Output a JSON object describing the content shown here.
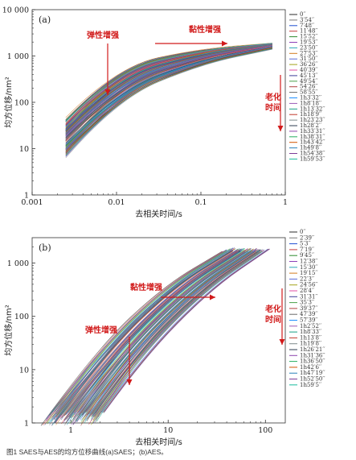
{
  "caption": "图1 SAES与AES的均方位移曲线(a)SAES；(b)AES。",
  "chart_data": [
    {
      "type": "line",
      "panel_label": "(a)",
      "xlabel": "去相关时间/s",
      "ylabel": "均方位移/nm²",
      "xscale": "log",
      "yscale": "log",
      "xlim": [
        0.001,
        1
      ],
      "ylim": [
        1,
        10000
      ],
      "xticks": [
        "0.001",
        "0.01",
        "0.1",
        "1"
      ],
      "yticks": [
        "1",
        "10",
        "100",
        "1 000",
        "10 000"
      ],
      "x_start": 0.0025,
      "annotations": [
        "弹性增强",
        "黏性增强",
        "老化\n时间"
      ],
      "legend": [
        "0′′",
        "3′54′′",
        "7′48′′",
        "11′48′′",
        "15′52′′",
        "19′53′′",
        "23′50′′",
        "27′53′′",
        "31′50′′",
        "36′26′′",
        "40′39′′",
        "45′13′′",
        "49′54′′",
        "54′26′′",
        "58′55′′",
        "1h3′32′′",
        "1h8′18′′",
        "1h13′32′′",
        "1h18′9′′",
        "1h23′23′′",
        "1h28′2′′",
        "1h33′31′′",
        "1h38′31′′",
        "1h43′42′′",
        "1h49′8′′",
        "1h54′38′′",
        "1h59′53′′"
      ],
      "series_colors": [
        "#2b2b2b",
        "#7a7a7a",
        "#1f4fd1",
        "#c43c3c",
        "#2e8b2e",
        "#8c3fb8",
        "#2aa7b8",
        "#d27b1e",
        "#5a6bd8",
        "#a3a31a",
        "#e04fa3",
        "#3d3d9a",
        "#4aa04a",
        "#b04040",
        "#6a6a6a",
        "#1e90ff",
        "#9b59b6",
        "#16a085",
        "#c0392b",
        "#7f8c8d",
        "#2c3e50",
        "#8e44ad",
        "#27ae60",
        "#d35400",
        "#2980b9",
        "#7d3c98",
        "#1abc9c"
      ],
      "series": [
        {
          "name": "0′′",
          "x": [
            0.0025,
            0.01,
            0.1,
            0.7
          ],
          "y": [
            40,
            600,
            1400,
            1800
          ]
        },
        {
          "name": "1h59′53′′",
          "x": [
            0.0025,
            0.01,
            0.1,
            0.7
          ],
          "y": [
            8,
            120,
            700,
            1500
          ]
        }
      ]
    },
    {
      "type": "line",
      "panel_label": "(b)",
      "xlabel": "去相关时间/s",
      "ylabel": "均方位移/nm²",
      "xscale": "log",
      "yscale": "log",
      "xlim": [
        0.4,
        160
      ],
      "ylim": [
        1,
        3000
      ],
      "xticks": [
        "1",
        "10",
        "100"
      ],
      "yticks": [
        "1",
        "10",
        "100",
        "1 000"
      ],
      "annotations": [
        "黏性增强",
        "弹性增强",
        "老化\n时间"
      ],
      "legend": [
        "0′′",
        "2′39′′",
        "5′3′′",
        "7′19′′",
        "9′45′′",
        "12′38′′",
        "15′30′′",
        "19′15′′",
        "22′3′′",
        "24′56′′",
        "28′4′′",
        "31′31′′",
        "35′3′′",
        "39′37′′",
        "47′39′′",
        "57′39′′",
        "1h2′52′′",
        "1h8′33′′",
        "1h13′8′′",
        "1h19′8′′",
        "1h26′21′′",
        "1h31′36′′",
        "1h36′50′′",
        "1h42′6′′",
        "1h47′19′′",
        "1h52′50′′",
        "1h59′5′′"
      ],
      "series_colors": [
        "#2b2b2b",
        "#7a7a7a",
        "#1f4fd1",
        "#c43c3c",
        "#2e8b2e",
        "#8c3fb8",
        "#2aa7b8",
        "#d27b1e",
        "#5a6bd8",
        "#a3a31a",
        "#e04fa3",
        "#3d3d9a",
        "#4aa04a",
        "#b04040",
        "#6a6a6a",
        "#1e90ff",
        "#9b59b6",
        "#16a085",
        "#c0392b",
        "#7f8c8d",
        "#2c3e50",
        "#8e44ad",
        "#27ae60",
        "#d35400",
        "#2980b9",
        "#7d3c98",
        "#1abc9c"
      ],
      "series": [
        {
          "name": "0′′",
          "x": [
            0.55,
            2,
            10,
            40
          ],
          "y": [
            1.2,
            25,
            400,
            1800
          ]
        },
        {
          "name": "1h59′5′′",
          "x": [
            2,
            5,
            25,
            100
          ],
          "y": [
            1.2,
            15,
            300,
            1700
          ]
        }
      ]
    }
  ]
}
